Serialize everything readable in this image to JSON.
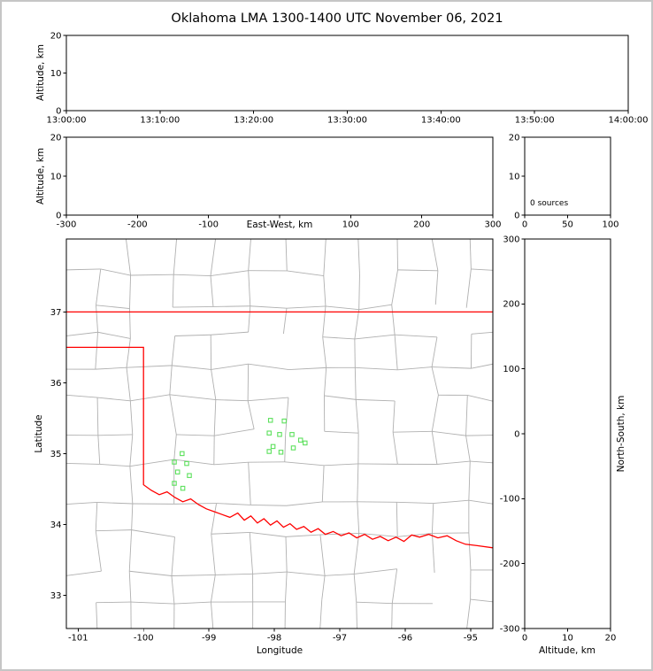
{
  "title": "Oklahoma LMA 1300-1400 UTC November 06, 2021",
  "colors": {
    "state_border": "#ff0000",
    "county_lines": "#b0b0b0",
    "stations": "#5ce05c",
    "axes": "#000000",
    "background": "#ffffff",
    "figure_border": "#c6c6c6"
  },
  "chart_data": [
    {
      "id": "time_height",
      "type": "scatter",
      "xlabel": "",
      "ylabel": "Altitude, km",
      "x_tick_labels": [
        "13:00:00",
        "13:10:00",
        "13:20:00",
        "13:30:00",
        "13:40:00",
        "13:50:00",
        "14:00:00"
      ],
      "ylim": [
        0,
        20
      ],
      "y_ticks": [
        0,
        10,
        20
      ],
      "points": []
    },
    {
      "id": "ew_height",
      "type": "scatter",
      "xlabel": "East-West, km",
      "ylabel": "Altitude, km",
      "xlim": [
        -300,
        300
      ],
      "x_ticks": [
        -300,
        -200,
        -100,
        0,
        100,
        200,
        300
      ],
      "x_tick_labels": [
        "-300",
        "-200",
        "-100",
        "",
        "100",
        "200",
        "300"
      ],
      "ylim": [
        0,
        20
      ],
      "y_ticks": [
        0,
        10,
        20
      ],
      "points": []
    },
    {
      "id": "alt_histogram",
      "type": "line",
      "xlabel": "",
      "ylabel": "",
      "xlim": [
        0,
        100
      ],
      "x_ticks": [
        0,
        50,
        100
      ],
      "x_tick_labels": [
        "0",
        "50",
        "100"
      ],
      "ylim": [
        0,
        20
      ],
      "y_ticks": [
        0,
        10,
        20
      ],
      "annotation": "0 sources",
      "points": []
    },
    {
      "id": "map",
      "type": "scatter",
      "xlabel": "Longitude",
      "ylabel": "Latitude",
      "xlim": [
        -101.18,
        -94.66
      ],
      "x_ticks": [
        -101,
        -100,
        -99,
        -98,
        -97,
        -96,
        -95
      ],
      "ylim": [
        32.53,
        38.03
      ],
      "y_ticks": [
        33,
        34,
        35,
        36,
        37
      ],
      "stations_lonlat": [
        [
          -98.06,
          35.47
        ],
        [
          -97.85,
          35.46
        ],
        [
          -98.08,
          35.29
        ],
        [
          -97.92,
          35.27
        ],
        [
          -97.73,
          35.27
        ],
        [
          -97.6,
          35.19
        ],
        [
          -98.02,
          35.1
        ],
        [
          -98.08,
          35.03
        ],
        [
          -97.9,
          35.02
        ],
        [
          -97.71,
          35.08
        ],
        [
          -97.53,
          35.15
        ],
        [
          -99.41,
          35.0
        ],
        [
          -99.53,
          34.88
        ],
        [
          -99.34,
          34.86
        ],
        [
          -99.48,
          34.74
        ],
        [
          -99.3,
          34.69
        ],
        [
          -99.53,
          34.58
        ],
        [
          -99.4,
          34.51
        ]
      ],
      "state_border_segments": [
        [
          [
            -101.18,
            37.0
          ],
          [
            -94.66,
            37.0
          ]
        ],
        [
          [
            -101.18,
            36.5
          ],
          [
            -100.0,
            36.5
          ],
          [
            -100.0,
            34.56
          ],
          [
            -99.88,
            34.48
          ],
          [
            -99.76,
            34.42
          ],
          [
            -99.64,
            34.46
          ],
          [
            -99.52,
            34.38
          ],
          [
            -99.4,
            34.32
          ],
          [
            -99.28,
            34.36
          ],
          [
            -99.16,
            34.28
          ],
          [
            -99.04,
            34.22
          ],
          [
            -98.92,
            34.18
          ],
          [
            -98.8,
            34.14
          ],
          [
            -98.68,
            34.1
          ],
          [
            -98.56,
            34.16
          ],
          [
            -98.46,
            34.06
          ],
          [
            -98.36,
            34.12
          ],
          [
            -98.26,
            34.02
          ],
          [
            -98.16,
            34.08
          ],
          [
            -98.06,
            33.99
          ],
          [
            -97.96,
            34.05
          ],
          [
            -97.86,
            33.96
          ],
          [
            -97.76,
            34.01
          ],
          [
            -97.66,
            33.93
          ],
          [
            -97.55,
            33.97
          ],
          [
            -97.44,
            33.89
          ],
          [
            -97.33,
            33.94
          ],
          [
            -97.22,
            33.86
          ],
          [
            -97.1,
            33.9
          ],
          [
            -96.98,
            33.84
          ],
          [
            -96.86,
            33.88
          ],
          [
            -96.74,
            33.81
          ],
          [
            -96.62,
            33.86
          ],
          [
            -96.5,
            33.79
          ],
          [
            -96.38,
            33.83
          ],
          [
            -96.26,
            33.77
          ],
          [
            -96.14,
            33.82
          ],
          [
            -96.02,
            33.76
          ],
          [
            -95.9,
            33.85
          ],
          [
            -95.78,
            33.82
          ],
          [
            -95.64,
            33.86
          ],
          [
            -95.5,
            33.81
          ],
          [
            -95.36,
            33.84
          ],
          [
            -95.22,
            33.77
          ],
          [
            -95.08,
            33.72
          ],
          [
            -94.9,
            33.7
          ],
          [
            -94.66,
            33.67
          ]
        ]
      ]
    },
    {
      "id": "ns_height",
      "type": "scatter",
      "xlabel": "Altitude, km",
      "ylabel": "North-South, km",
      "xlim": [
        0,
        20
      ],
      "x_ticks": [
        0,
        10,
        20
      ],
      "x_tick_labels": [
        "0",
        "10",
        "20"
      ],
      "ylim": [
        -300,
        300
      ],
      "y_ticks": [
        300,
        200,
        100,
        0,
        -100,
        -200,
        -300
      ],
      "points": []
    }
  ]
}
